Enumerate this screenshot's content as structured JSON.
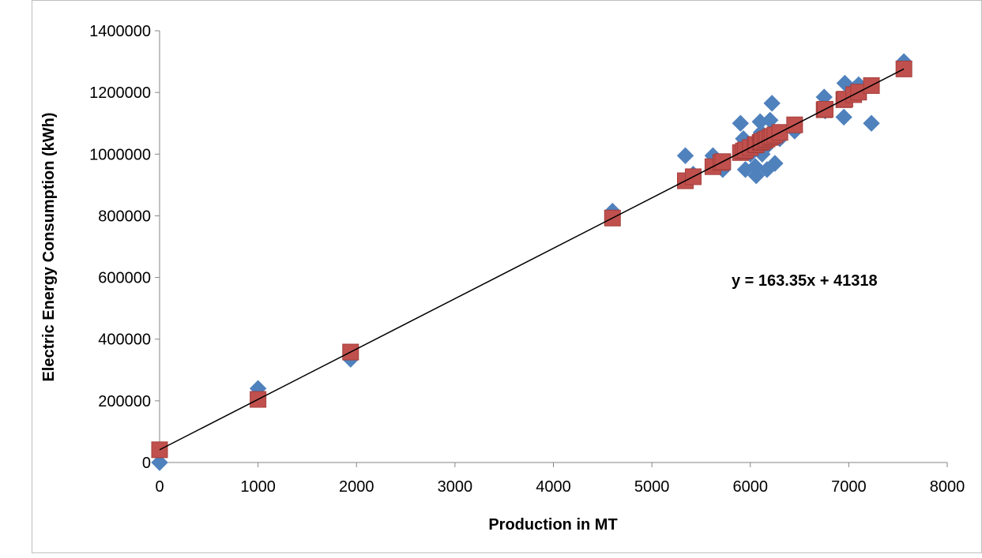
{
  "chart_data": {
    "type": "scatter",
    "title": "",
    "xlabel": "Production in MT",
    "ylabel": "Electric Energy Consumption (kWh)",
    "xlim": [
      0,
      8000
    ],
    "ylim": [
      0,
      1400000
    ],
    "xticks": [
      "0",
      "1000",
      "2000",
      "3000",
      "4000",
      "5000",
      "6000",
      "7000",
      "8000"
    ],
    "yticks": [
      "0",
      "200000",
      "400000",
      "600000",
      "800000",
      "1000000",
      "1200000",
      "1400000"
    ],
    "grid": false,
    "legend": "none",
    "annotation": "y = 163.35x + 41318",
    "trendline": {
      "slope": 163.35,
      "intercept": 41318,
      "x_range": [
        0,
        7560
      ],
      "color": "#000000"
    },
    "series": [
      {
        "marker": "diamond",
        "color": "#4F81BD",
        "points": [
          [
            0,
            0
          ],
          [
            1000,
            240000
          ],
          [
            1940,
            335000
          ],
          [
            4600,
            815000
          ],
          [
            5340,
            995000
          ],
          [
            5420,
            935000
          ],
          [
            5620,
            995000
          ],
          [
            5700,
            975000
          ],
          [
            5720,
            950000
          ],
          [
            5900,
            1100000
          ],
          [
            5930,
            1050000
          ],
          [
            5950,
            950000
          ],
          [
            6000,
            1000000
          ],
          [
            6050,
            960000
          ],
          [
            6060,
            930000
          ],
          [
            6100,
            1105000
          ],
          [
            6110,
            1070000
          ],
          [
            6120,
            1000000
          ],
          [
            6150,
            1020000
          ],
          [
            6170,
            950000
          ],
          [
            6200,
            1110000
          ],
          [
            6220,
            1165000
          ],
          [
            6250,
            970000
          ],
          [
            6300,
            1050000
          ],
          [
            6450,
            1075000
          ],
          [
            6750,
            1185000
          ],
          [
            6760,
            1140000
          ],
          [
            6950,
            1120000
          ],
          [
            6960,
            1230000
          ],
          [
            7050,
            1210000
          ],
          [
            7100,
            1225000
          ],
          [
            7230,
            1100000
          ],
          [
            7560,
            1300000
          ]
        ]
      },
      {
        "marker": "square",
        "color": "#C0504D",
        "points": [
          [
            0,
            41318
          ],
          [
            1000,
            204668
          ],
          [
            1940,
            358217
          ],
          [
            4600,
            792728
          ],
          [
            5340,
            913607
          ],
          [
            5420,
            926675
          ],
          [
            5620,
            959345
          ],
          [
            5700,
            972413
          ],
          [
            5720,
            975680
          ],
          [
            5900,
            1005083
          ],
          [
            5930,
            1009984
          ],
          [
            5950,
            1013251
          ],
          [
            6000,
            1021418
          ],
          [
            6050,
            1029586
          ],
          [
            6060,
            1031219
          ],
          [
            6100,
            1037753
          ],
          [
            6110,
            1039387
          ],
          [
            6120,
            1041020
          ],
          [
            6150,
            1045921
          ],
          [
            6170,
            1049188
          ],
          [
            6200,
            1054088
          ],
          [
            6220,
            1057355
          ],
          [
            6250,
            1062256
          ],
          [
            6300,
            1070423
          ],
          [
            6450,
            1094926
          ],
          [
            6750,
            1143931
          ],
          [
            6760,
            1145564
          ],
          [
            6950,
            1176601
          ],
          [
            6960,
            1178234
          ],
          [
            7050,
            1192936
          ],
          [
            7100,
            1201103
          ],
          [
            7230,
            1222339
          ],
          [
            7560,
            1276245
          ]
        ]
      }
    ]
  }
}
